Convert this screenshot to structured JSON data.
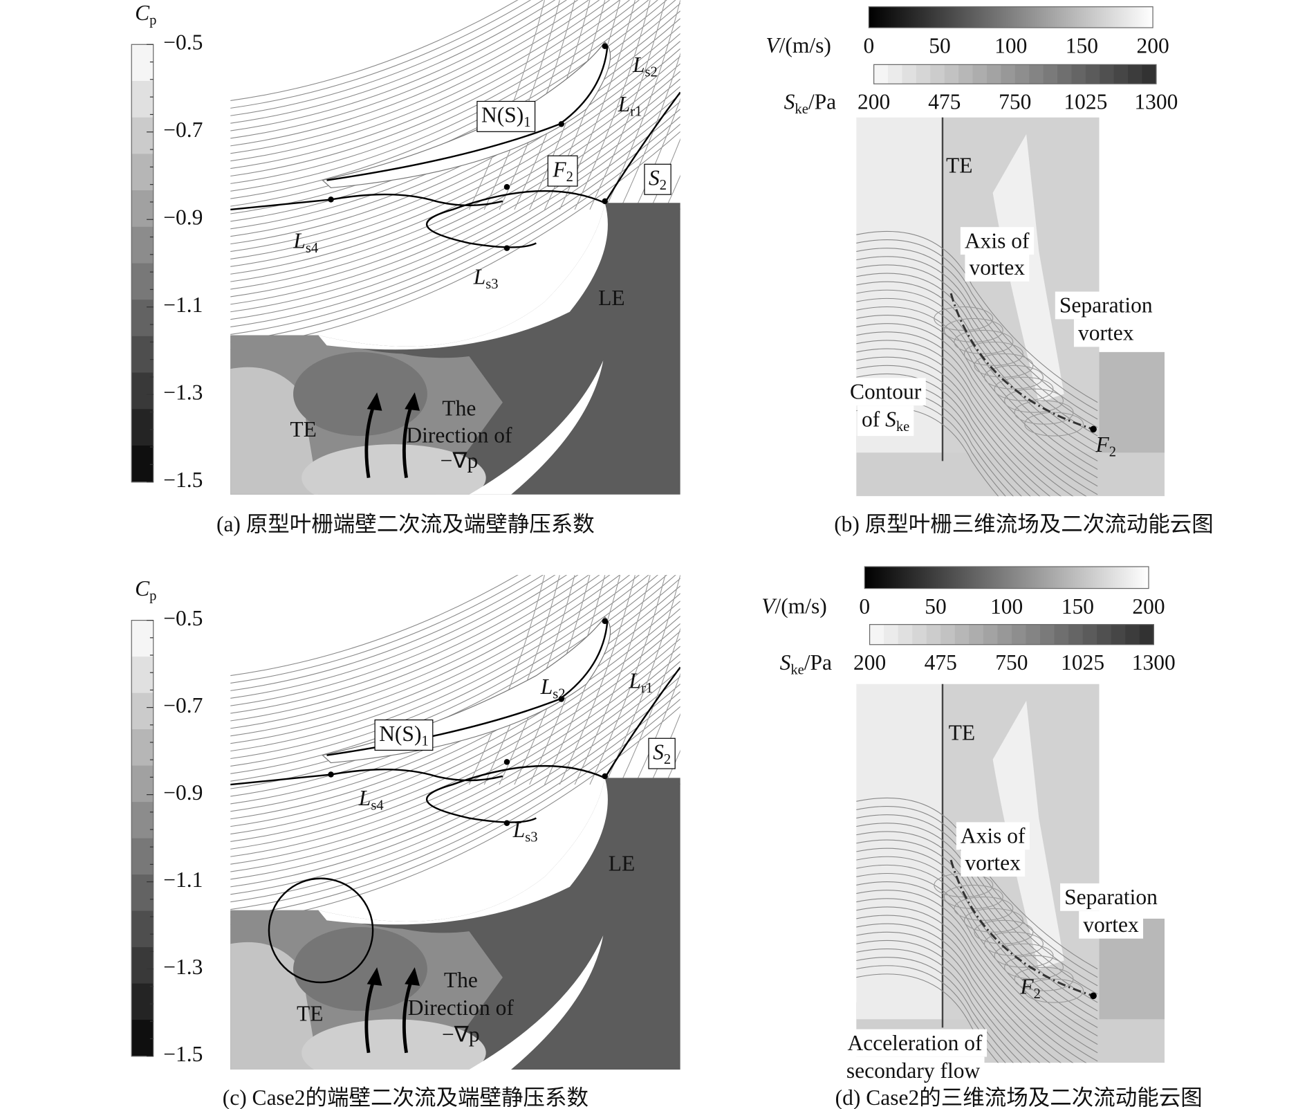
{
  "panels": [
    {
      "caption": "(a) 原型叶栅端壁二次流及端壁静压系数",
      "colorbars": [
        {
          "title": {
            "main": "C",
            "sub": "p"
          },
          "ticks": [
            "−0.5",
            "−0.7",
            "−0.9",
            "−1.1",
            "−1.3",
            "−1.5"
          ]
        }
      ],
      "labels": [
        {
          "main": "L",
          "sub": "s2"
        },
        {
          "main": "N(S)",
          "sub": "1"
        },
        {
          "main": "L",
          "sub": "r1"
        },
        {
          "main": "F",
          "sub": "2"
        },
        {
          "main": "S",
          "sub": "2"
        },
        {
          "main": "L",
          "sub": "s4"
        },
        {
          "main": "L",
          "sub": "s3"
        },
        {
          "pre": "LE"
        },
        {
          "pre": "TE"
        },
        {
          "pre": "The"
        },
        {
          "pre": "Direction of"
        },
        {
          "pre": "−∇p"
        }
      ]
    },
    {
      "caption": "(b) 原型叶栅三维流场及二次流动能云图",
      "colorbars": [
        {
          "title": {
            "main": "V",
            "post": "/(m/s)"
          },
          "ticks": [
            "0",
            "50",
            "100",
            "150",
            "200"
          ]
        },
        {
          "title": {
            "main": "S",
            "sub": "ke",
            "post": "/Pa"
          },
          "ticks": [
            "200",
            "475",
            "750",
            "1025",
            "1300"
          ]
        }
      ],
      "labels": [
        {
          "pre": "TE"
        },
        {
          "pre": "Axis of"
        },
        {
          "pre": "vortex"
        },
        {
          "pre": "Separation"
        },
        {
          "pre": "vortex"
        },
        {
          "pre": "Contour"
        },
        {
          "pre": "of ",
          "main": "S",
          "sub": "ke"
        },
        {
          "main": "F",
          "sub": "2"
        }
      ]
    },
    {
      "caption": "(c) Case2的端壁二次流及端壁静压系数",
      "colorbars": [
        {
          "title": {
            "main": "C",
            "sub": "p"
          },
          "ticks": [
            "−0.5",
            "−0.7",
            "−0.9",
            "−1.1",
            "−1.3",
            "−1.5"
          ]
        }
      ],
      "labels": [
        {
          "main": "L",
          "sub": "s2"
        },
        {
          "main": "L",
          "sub": "r1"
        },
        {
          "main": "N(S)",
          "sub": "1"
        },
        {
          "main": "S",
          "sub": "2"
        },
        {
          "main": "L",
          "sub": "s4"
        },
        {
          "main": "L",
          "sub": "s3"
        },
        {
          "pre": "LE"
        },
        {
          "pre": "TE"
        },
        {
          "pre": "The"
        },
        {
          "pre": "Direction of"
        },
        {
          "pre": "−∇p"
        }
      ]
    },
    {
      "caption": "(d) Case2的三维流场及二次流动能云图",
      "colorbars": [
        {
          "title": {
            "main": "V",
            "post": "/(m/s)"
          },
          "ticks": [
            "0",
            "50",
            "100",
            "150",
            "200"
          ]
        },
        {
          "title": {
            "main": "S",
            "sub": "ke",
            "post": "/Pa"
          },
          "ticks": [
            "200",
            "475",
            "750",
            "1025",
            "1300"
          ]
        }
      ],
      "labels": [
        {
          "pre": "TE"
        },
        {
          "pre": "Axis of"
        },
        {
          "pre": "vortex"
        },
        {
          "pre": "Separation"
        },
        {
          "pre": "vortex"
        },
        {
          "main": "F",
          "sub": "2"
        },
        {
          "pre": "Acceleration of"
        },
        {
          "pre": "secondary flow"
        }
      ]
    }
  ]
}
